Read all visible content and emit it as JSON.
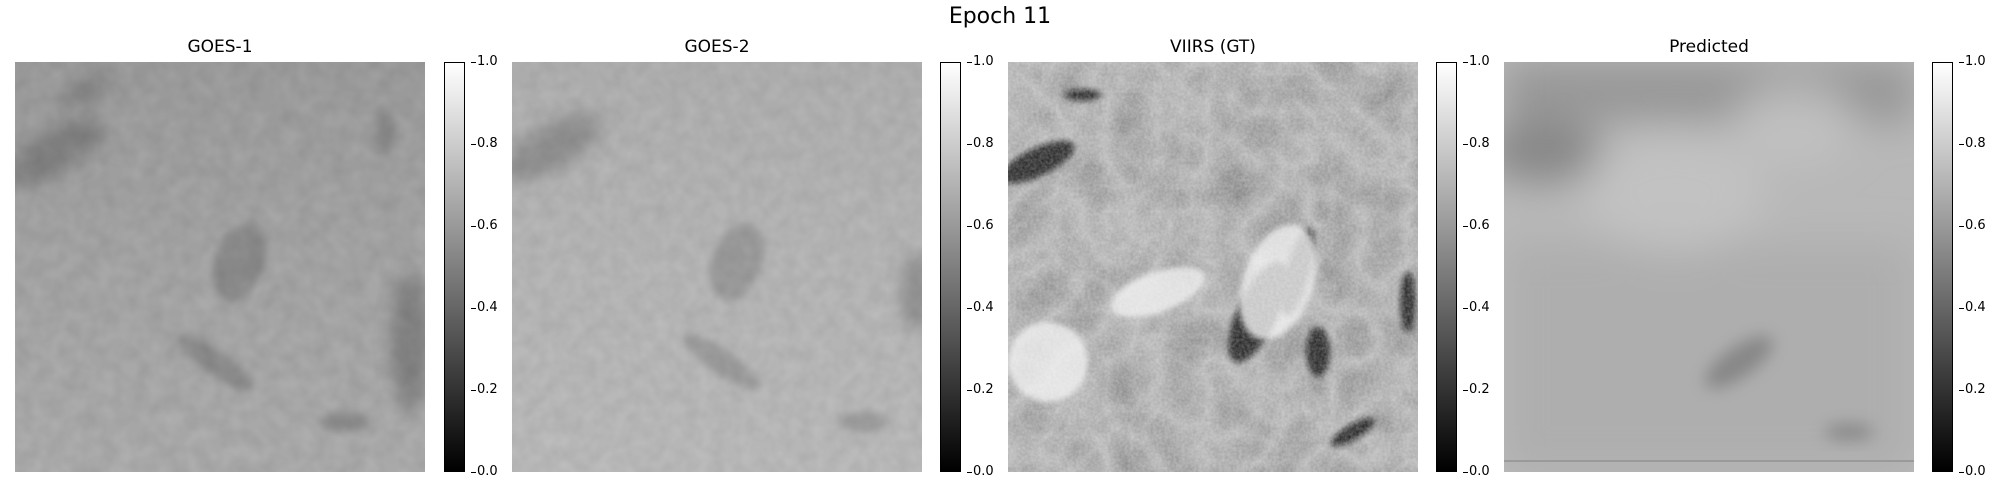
{
  "figure": {
    "title": "Epoch 11"
  },
  "panels": [
    {
      "title": "GOES-1",
      "kind": "goes1"
    },
    {
      "title": "GOES-2",
      "kind": "goes2"
    },
    {
      "title": "VIIRS (GT)",
      "kind": "viirs"
    },
    {
      "title": "Predicted",
      "kind": "pred"
    }
  ],
  "colorbar": {
    "ticks": [
      "0.0",
      "0.2",
      "0.4",
      "0.6",
      "0.8",
      "1.0"
    ],
    "range": [
      0,
      1
    ],
    "colormap": "gray"
  }
}
